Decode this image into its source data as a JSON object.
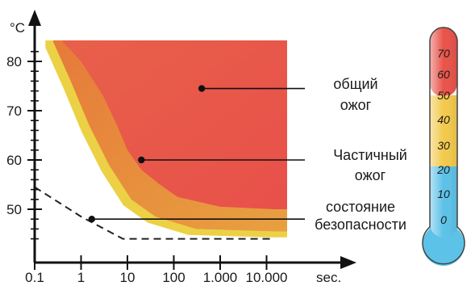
{
  "chart_data": {
    "type": "area",
    "x_scale": "log",
    "x_ticks": [
      {
        "value": 0.1,
        "label": "0.1"
      },
      {
        "value": 1,
        "label": "1"
      },
      {
        "value": 10,
        "label": "10"
      },
      {
        "value": 100,
        "label": "100"
      },
      {
        "value": 1000,
        "label": "1.000"
      },
      {
        "value": 10000,
        "label": "10.000"
      }
    ],
    "xunit": "sec.",
    "y_ticks": [
      {
        "value": 50,
        "label": "50"
      },
      {
        "value": 60,
        "label": "60"
      },
      {
        "value": 70,
        "label": "70"
      },
      {
        "value": 80,
        "label": "80"
      }
    ],
    "yunit": "°C",
    "xlim": [
      0.1,
      10000
    ],
    "ylim": [
      43,
      84
    ],
    "regions": [
      {
        "label": "общий ожог",
        "color": "#e8534a",
        "boundary": [
          [
            0.4,
            84
          ],
          [
            1,
            80
          ],
          [
            3,
            73
          ],
          [
            6,
            67
          ],
          [
            10,
            62
          ],
          [
            20,
            58
          ],
          [
            50,
            55
          ],
          [
            120,
            52.5
          ],
          [
            1000,
            50.5
          ],
          [
            15000,
            50
          ]
        ]
      },
      {
        "label": "Частичный ожог",
        "color": "#e87a3c",
        "boundary": [
          [
            0.25,
            84
          ],
          [
            0.6,
            76
          ],
          [
            1.5,
            67
          ],
          [
            4,
            59
          ],
          [
            12,
            52
          ],
          [
            40,
            48.5
          ],
          [
            300,
            46
          ],
          [
            15000,
            45.5
          ]
        ]
      },
      {
        "label": "состояние безопасности",
        "line_style": "dashed",
        "boundary": [
          [
            0.1,
            54.5
          ],
          [
            1,
            48.5
          ],
          [
            8,
            44
          ],
          [
            15000,
            44
          ]
        ]
      }
    ],
    "annotations": [
      {
        "lines": [
          "общий",
          "ожог"
        ],
        "point": [
          400,
          74.5
        ]
      },
      {
        "lines": [
          "Частичный",
          "ожог"
        ],
        "point": [
          20,
          60
        ]
      },
      {
        "lines": [
          "состояние",
          "безопасности"
        ],
        "point": [
          1.7,
          48
        ]
      }
    ]
  },
  "thermometer": {
    "labels": [
      "70",
      "60",
      "50",
      "40",
      "30",
      "20",
      "10",
      "0"
    ],
    "colors": {
      "hot": "#e8534a",
      "warm": "#f2c94c",
      "cold": "#5cc2e8"
    }
  }
}
